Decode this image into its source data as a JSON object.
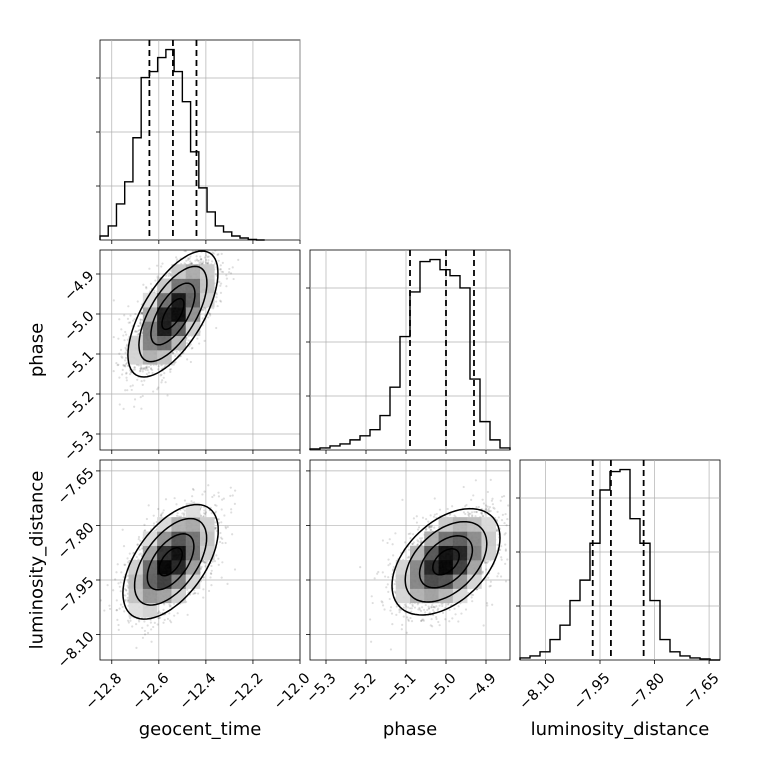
{
  "chart_data": {
    "type": "corner",
    "parameters": [
      {
        "name": "geocent_time",
        "label": "geocent_time",
        "range": [
          -12.85,
          -12.0
        ],
        "ticks": [
          -12.8,
          -12.6,
          -12.4,
          -12.2,
          -12.0
        ],
        "tick_labels": [
          "−12.8",
          "−12.6",
          "−12.4",
          "−12.2",
          "−12.0"
        ],
        "quantiles": [
          -12.64,
          -12.54,
          -12.44
        ],
        "hist_bin_edges": [
          -12.85,
          -12.815,
          -12.78,
          -12.745,
          -12.71,
          -12.675,
          -12.64,
          -12.605,
          -12.57,
          -12.535,
          -12.5,
          -12.465,
          -12.43,
          -12.395,
          -12.36,
          -12.325,
          -12.29,
          -12.255,
          -12.22,
          -12.185,
          -12.15
        ],
        "hist_counts": [
          2,
          7,
          18,
          29,
          51,
          81,
          84,
          91,
          95,
          84,
          69,
          44,
          26,
          14,
          7,
          4,
          2,
          1,
          0.3,
          0
        ]
      },
      {
        "name": "phase",
        "label": "phase",
        "range": [
          -5.34,
          -4.84
        ],
        "ticks": [
          -5.3,
          -5.2,
          -5.1,
          -5.0,
          -4.9
        ],
        "tick_labels": [
          "−5.3",
          "−5.2",
          "−5.1",
          "−5.0",
          "−4.9"
        ],
        "quantiles": [
          -5.09,
          -5.0,
          -4.93
        ],
        "hist_bin_edges": [
          -5.34,
          -5.315,
          -5.29,
          -5.265,
          -5.24,
          -5.215,
          -5.19,
          -5.165,
          -5.14,
          -5.115,
          -5.09,
          -5.065,
          -5.04,
          -5.015,
          -4.99,
          -4.965,
          -4.94,
          -4.915,
          -4.89,
          -4.865,
          -4.84
        ],
        "hist_counts": [
          0.5,
          1,
          2,
          3,
          5,
          7,
          10,
          17,
          31,
          56,
          78,
          93,
          94,
          89,
          86,
          80,
          35,
          14,
          5,
          1
        ]
      },
      {
        "name": "luminosity_distance",
        "label": "luminosity_distance",
        "range": [
          -8.17,
          -7.62
        ],
        "ticks": [
          -8.1,
          -7.95,
          -7.8,
          -7.65
        ],
        "tick_labels": [
          "−8.10",
          "−7.95",
          "−7.80",
          "−7.65"
        ],
        "quantiles": [
          -7.97,
          -7.92,
          -7.83
        ],
        "hist_bin_edges": [
          -8.17,
          -8.1425,
          -8.115,
          -8.0875,
          -8.06,
          -8.0325,
          -8.005,
          -7.9775,
          -7.95,
          -7.9225,
          -7.895,
          -7.8675,
          -7.84,
          -7.8125,
          -7.785,
          -7.7575,
          -7.73,
          -7.7025,
          -7.675,
          -7.6475,
          -7.62
        ],
        "hist_counts": [
          1,
          2,
          4,
          10,
          17,
          29,
          39,
          57,
          83,
          92,
          93,
          69,
          57,
          29,
          10,
          4,
          2,
          1,
          0.5,
          0
        ]
      }
    ],
    "pairs": [
      {
        "x": "geocent_time",
        "y": "phase",
        "mean": [
          -12.54,
          -5.0
        ],
        "sd": [
          0.085,
          0.07
        ],
        "corr": 0.65
      },
      {
        "x": "geocent_time",
        "y": "luminosity_distance",
        "mean": [
          -12.55,
          -7.9
        ],
        "sd": [
          0.09,
          0.07
        ],
        "corr": 0.55
      },
      {
        "x": "phase",
        "y": "luminosity_distance",
        "mean": [
          -5.0,
          -7.9
        ],
        "sd": [
          0.06,
          0.065
        ],
        "corr": 0.45
      }
    ],
    "grid": true
  }
}
